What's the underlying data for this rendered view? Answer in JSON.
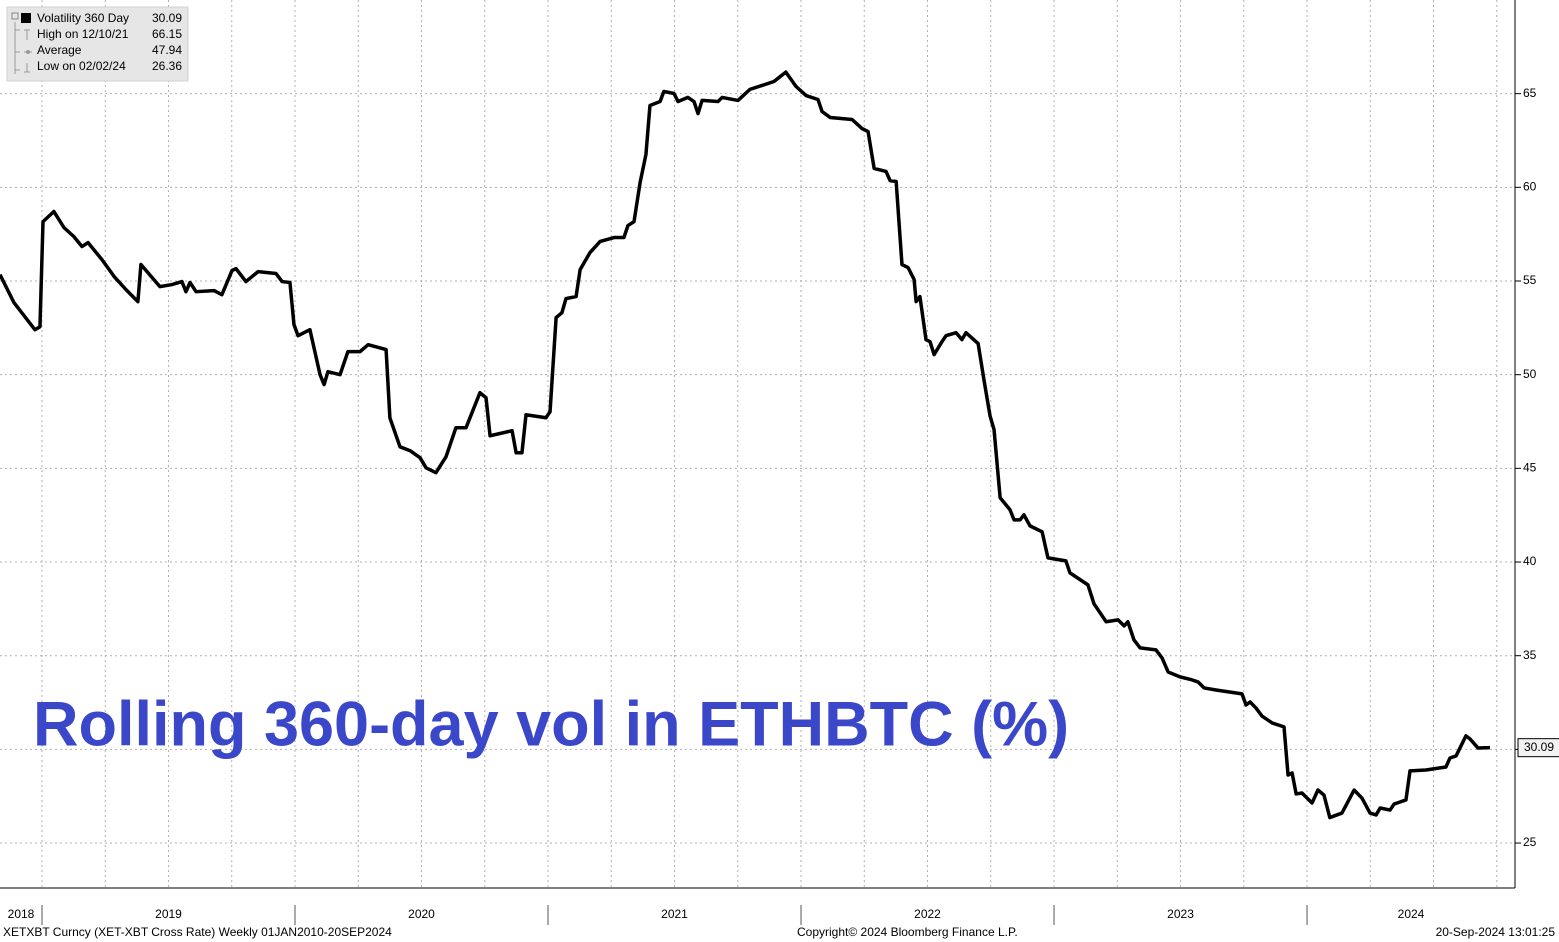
{
  "chart_data": {
    "type": "line",
    "annotation": "Rolling 360-day vol in ETHBTC (%)",
    "footer_left": "XETXBT Curncy (XET-XBT Cross Rate)  Weekly 01JAN2010-20SEP2024",
    "footer_center": "Copyright© 2024 Bloomberg Finance L.P.",
    "footer_right": "20-Sep-2024 13:01:25",
    "legend_stats": [
      {
        "label": "High on 12/10/21",
        "value": 66.15
      },
      {
        "label": "Average",
        "value": 47.94
      },
      {
        "label": "Low on 02/02/24",
        "value": 26.36
      }
    ],
    "xlim": [
      2018.834,
      2024.822
    ],
    "xticks": [
      2019,
      2020,
      2021,
      2022,
      2023,
      2024
    ],
    "year_labels": [
      2018,
      2019,
      2020,
      2021,
      2022,
      2023,
      2024
    ],
    "ylim": [
      22.6,
      70
    ],
    "yticks": [
      25,
      30,
      35,
      40,
      45,
      50,
      55,
      60,
      65
    ],
    "grid": true,
    "x": [
      2018.834,
      2018.889,
      2018.972,
      2018.992,
      2019.004,
      2019.047,
      2019.087,
      2019.126,
      2019.158,
      2019.182,
      2019.237,
      2019.285,
      2019.332,
      2019.379,
      2019.391,
      2019.466,
      2019.514,
      2019.553,
      2019.569,
      2019.585,
      2019.609,
      2019.68,
      2019.711,
      2019.751,
      2019.767,
      2019.806,
      2019.854,
      2019.925,
      2019.949,
      2019.98,
      2019.996,
      2020.012,
      2020.059,
      2020.099,
      2020.115,
      2020.13,
      2020.178,
      2020.209,
      2020.257,
      2020.289,
      2020.36,
      2020.375,
      2020.415,
      2020.455,
      2020.494,
      2020.518,
      2020.557,
      2020.597,
      2020.636,
      2020.676,
      2020.731,
      2020.755,
      2020.771,
      2020.858,
      2020.874,
      2020.897,
      2020.913,
      2020.992,
      2021.008,
      2021.032,
      2021.055,
      2021.071,
      2021.111,
      2021.127,
      2021.166,
      2021.206,
      2021.261,
      2021.3,
      2021.316,
      2021.34,
      2021.364,
      2021.387,
      2021.403,
      2021.443,
      2021.458,
      2021.498,
      2021.514,
      2021.553,
      2021.577,
      2021.593,
      2021.609,
      2021.672,
      2021.688,
      2021.751,
      2021.798,
      2021.846,
      2021.893,
      2021.94,
      2021.98,
      2022.02,
      2022.067,
      2022.083,
      2022.115,
      2022.202,
      2022.241,
      2022.265,
      2022.289,
      2022.336,
      2022.352,
      2022.376,
      2022.399,
      2022.423,
      2022.447,
      2022.455,
      2022.47,
      2022.494,
      2022.51,
      2022.526,
      2022.557,
      2022.573,
      2022.613,
      2022.636,
      2022.652,
      2022.7,
      2022.723,
      2022.747,
      2022.763,
      2022.787,
      2022.826,
      2022.842,
      2022.866,
      2022.881,
      2022.905,
      2022.953,
      2022.976,
      2023.047,
      2023.063,
      2023.134,
      2023.158,
      2023.206,
      2023.253,
      2023.277,
      2023.292,
      2023.316,
      2023.34,
      2023.403,
      2023.427,
      2023.451,
      2023.498,
      2023.545,
      2023.569,
      2023.593,
      2023.64,
      2023.743,
      2023.759,
      2023.775,
      2023.798,
      2023.822,
      2023.862,
      2023.909,
      2023.925,
      2023.941,
      2023.957,
      2023.98,
      2024.02,
      2024.043,
      2024.067,
      2024.09,
      2024.138,
      2024.186,
      2024.217,
      2024.249,
      2024.273,
      2024.289,
      2024.328,
      2024.344,
      2024.391,
      2024.407,
      2024.47,
      2024.549,
      2024.565,
      2024.589,
      2024.628,
      2024.644,
      2024.676,
      2024.723
    ],
    "series": [
      {
        "name": "Volatility 360 Day",
        "color": "#000000",
        "values": [
          55.34,
          53.85,
          52.4,
          52.56,
          58.17,
          58.71,
          57.85,
          57.37,
          56.84,
          57.05,
          56.14,
          55.24,
          54.54,
          53.9,
          55.88,
          54.7,
          54.81,
          54.97,
          54.43,
          54.92,
          54.43,
          54.49,
          54.27,
          55.56,
          55.66,
          54.97,
          55.5,
          55.4,
          54.97,
          54.92,
          52.67,
          52.08,
          52.4,
          50.0,
          49.47,
          50.16,
          50.0,
          51.23,
          51.23,
          51.6,
          51.34,
          47.7,
          46.15,
          45.94,
          45.57,
          45.03,
          44.77,
          45.62,
          47.17,
          47.17,
          49.04,
          48.77,
          46.74,
          47.01,
          45.83,
          45.83,
          47.86,
          47.7,
          48.02,
          53.05,
          53.31,
          54.06,
          54.17,
          55.61,
          56.52,
          57.11,
          57.32,
          57.32,
          57.96,
          58.17,
          60.26,
          61.75,
          64.37,
          64.58,
          65.12,
          65.01,
          64.58,
          64.8,
          64.58,
          63.94,
          64.64,
          64.58,
          64.8,
          64.64,
          65.23,
          65.44,
          65.65,
          66.15,
          65.39,
          64.9,
          64.69,
          64.05,
          63.73,
          63.62,
          63.14,
          62.98,
          61.01,
          60.85,
          60.36,
          60.31,
          55.88,
          55.72,
          55.08,
          53.9,
          54.17,
          51.87,
          51.76,
          51.07,
          51.76,
          52.08,
          52.24,
          51.87,
          52.24,
          51.66,
          49.73,
          47.81,
          47.06,
          43.43,
          42.79,
          42.25,
          42.25,
          42.52,
          41.93,
          41.61,
          40.22,
          40.06,
          39.42,
          38.78,
          37.77,
          36.81,
          36.91,
          36.59,
          36.81,
          35.84,
          35.42,
          35.31,
          34.88,
          34.13,
          33.87,
          33.71,
          33.6,
          33.28,
          33.17,
          32.96,
          32.37,
          32.53,
          32.21,
          31.78,
          31.41,
          31.2,
          28.63,
          28.74,
          27.62,
          27.67,
          27.14,
          27.83,
          27.56,
          26.36,
          26.6,
          27.83,
          27.4,
          26.6,
          26.5,
          26.87,
          26.76,
          27.08,
          27.3,
          28.85,
          28.9,
          29.06,
          29.54,
          29.65,
          30.72,
          30.56,
          30.07,
          30.09
        ]
      }
    ]
  }
}
